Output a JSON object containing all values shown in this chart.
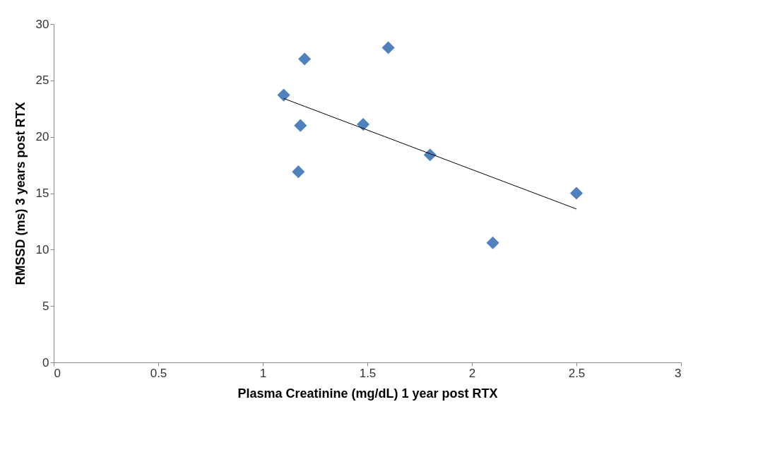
{
  "chart_data": {
    "type": "scatter",
    "xlabel": "Plasma Creatinine (mg/dL) 1 year post RTX",
    "ylabel": "RMSSD (ms) 3 years post RTX",
    "xlim": [
      0,
      3
    ],
    "xticks": [
      0,
      0.5,
      1,
      1.5,
      2,
      2.5,
      3
    ],
    "ylim": [
      0,
      30
    ],
    "yticks": [
      0,
      5,
      10,
      15,
      20,
      25,
      30
    ],
    "grid": false,
    "series": [
      {
        "marker": "diamond",
        "color": "#4f81bd",
        "x": [
          1.1,
          1.2,
          1.18,
          1.17,
          1.48,
          1.6,
          1.8,
          2.1,
          2.5
        ],
        "values": [
          23.7,
          26.9,
          21.0,
          16.9,
          21.1,
          27.9,
          18.4,
          10.6,
          15.0
        ]
      },
      {
        "type": "line",
        "color": "#000000",
        "x": [
          1.1,
          2.5
        ],
        "values": [
          23.4,
          13.6
        ]
      }
    ]
  }
}
